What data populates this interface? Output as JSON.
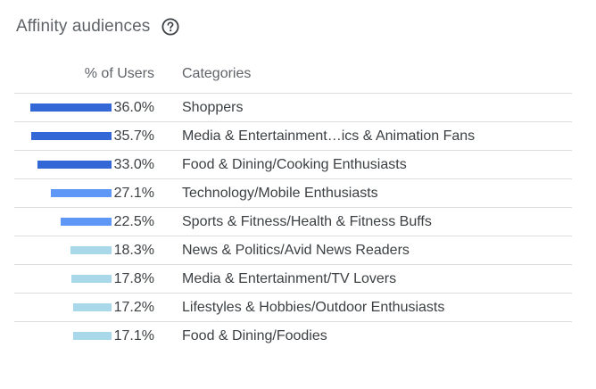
{
  "card": {
    "title": "Affinity audiences",
    "help_icon": "help-circle-icon"
  },
  "table": {
    "col_pct": "% of Users",
    "col_category": "Categories",
    "rows": [
      {
        "pct_label": "36.0%",
        "value": 36.0,
        "category": "Shoppers",
        "color": "#3367d6"
      },
      {
        "pct_label": "35.7%",
        "value": 35.7,
        "category": "Media & Entertainment…ics & Animation Fans",
        "color": "#3367d6"
      },
      {
        "pct_label": "33.0%",
        "value": 33.0,
        "category": "Food & Dining/Cooking Enthusiasts",
        "color": "#3367d6"
      },
      {
        "pct_label": "27.1%",
        "value": 27.1,
        "category": "Technology/Mobile Enthusiasts",
        "color": "#5e97f6"
      },
      {
        "pct_label": "22.5%",
        "value": 22.5,
        "category": "Sports & Fitness/Health & Fitness Buffs",
        "color": "#5e97f6"
      },
      {
        "pct_label": "18.3%",
        "value": 18.3,
        "category": "News & Politics/Avid News Readers",
        "color": "#a8d8ea"
      },
      {
        "pct_label": "17.8%",
        "value": 17.8,
        "category": "Media & Entertainment/TV Lovers",
        "color": "#a8d8ea"
      },
      {
        "pct_label": "17.2%",
        "value": 17.2,
        "category": "Lifestyles & Hobbies/Outdoor Enthusiasts",
        "color": "#a8d8ea"
      },
      {
        "pct_label": "17.1%",
        "value": 17.1,
        "category": "Food & Dining/Foodies",
        "color": "#a8d8ea"
      }
    ]
  }
}
